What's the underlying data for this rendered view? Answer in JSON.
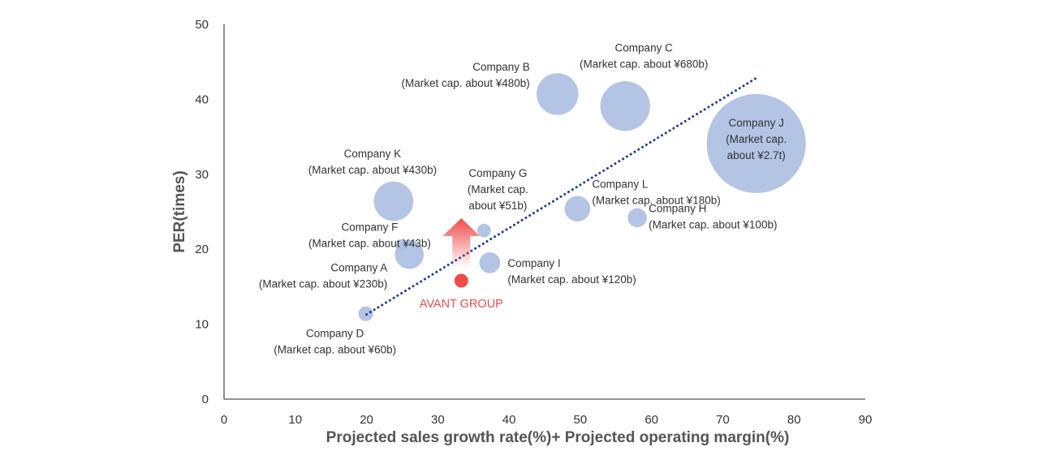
{
  "chart_data": {
    "type": "scatter",
    "subtype": "bubble",
    "xlabel": "Projected sales growth rate(%)+ Projected operating margin(%)",
    "ylabel": "PER(times)",
    "xlim": [
      0,
      90
    ],
    "ylim": [
      0,
      50
    ],
    "xticks": [
      "0",
      "10",
      "20",
      "30",
      "40",
      "50",
      "60",
      "70",
      "80",
      "90"
    ],
    "yticks": [
      "0",
      "10",
      "20",
      "30",
      "40",
      "50"
    ],
    "grid": false,
    "colors": {
      "bubble": "#aebfe2",
      "highlight": "#f04b4b",
      "trend": "#1f3f99",
      "axis": "#555555"
    },
    "points": [
      {
        "x": 26.0,
        "y": 19.3,
        "cap_b": 230,
        "lines": [
          "Company A",
          "(Market cap. about ¥230b)"
        ]
      },
      {
        "x": 46.8,
        "y": 40.7,
        "cap_b": 480,
        "lines": [
          "Company B",
          "(Market cap. about ¥480b)"
        ]
      },
      {
        "x": 56.3,
        "y": 39.1,
        "cap_b": 680,
        "lines": [
          "Company C",
          "(Market cap. about ¥680b)"
        ]
      },
      {
        "x": 19.9,
        "y": 11.4,
        "cap_b": 60,
        "lines": [
          "Company D",
          "(Market cap. about ¥60b)"
        ]
      },
      {
        "x": 25.0,
        "y": 20.5,
        "cap_b": 43,
        "lines": [
          "Company F",
          "(Market cap. about ¥43b)"
        ]
      },
      {
        "x": 36.5,
        "y": 22.5,
        "cap_b": 51,
        "lines": [
          "Company G",
          "(Market cap.",
          "about ¥51b)"
        ]
      },
      {
        "x": 58.0,
        "y": 24.2,
        "cap_b": 100,
        "lines": [
          "Company H",
          "(Market cap. about ¥100b)"
        ]
      },
      {
        "x": 37.3,
        "y": 18.2,
        "cap_b": 120,
        "lines": [
          "Company I",
          "(Market cap. about ¥120b)"
        ]
      },
      {
        "x": 74.7,
        "y": 34.1,
        "cap_b": 2700,
        "lines": [
          "Company J",
          "(Market cap.",
          "about ¥2.7t)"
        ]
      },
      {
        "x": 23.8,
        "y": 26.4,
        "cap_b": 430,
        "lines": [
          "Company K",
          "(Market cap. about ¥430b)"
        ]
      },
      {
        "x": 49.6,
        "y": 25.4,
        "cap_b": 180,
        "lines": [
          "Company L",
          "(Market cap. about ¥180b)"
        ]
      }
    ],
    "highlight": {
      "x": 33.3,
      "y": 15.8,
      "label": "AVANT GROUP"
    },
    "trendline": {
      "x": [
        20.0,
        75.0
      ],
      "y": [
        11.3,
        43.0
      ]
    }
  }
}
